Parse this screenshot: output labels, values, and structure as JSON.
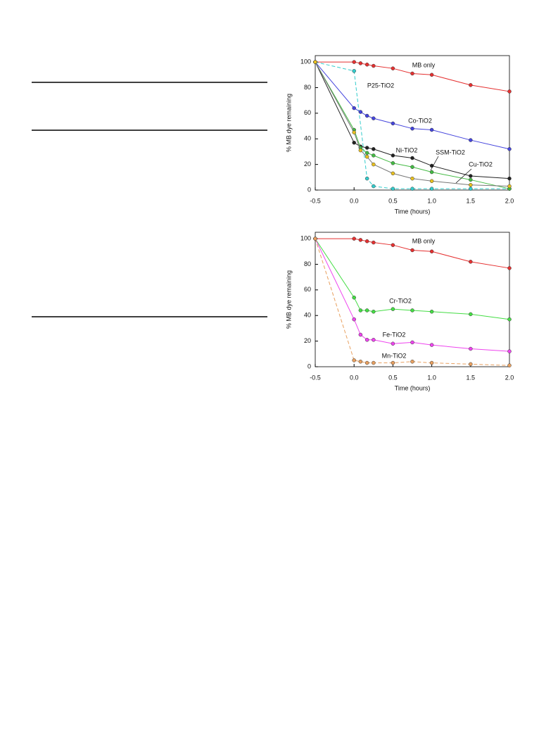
{
  "chart_data": [
    {
      "type": "line",
      "xlabel": "Time (hours)",
      "ylabel": "% MB dye remaining",
      "x": [
        -0.5,
        0,
        0.083,
        0.167,
        0.25,
        0.5,
        0.75,
        1.0,
        1.5,
        2.0
      ],
      "xlim": [
        -0.5,
        2.0
      ],
      "xticks": [
        -0.5,
        {
          "value": 0,
          "label": "0.0"
        },
        0.5,
        {
          "value": 1,
          "label": "1.0"
        },
        1.5,
        {
          "value": 2,
          "label": "2.0"
        }
      ],
      "ylim": [
        0,
        105
      ],
      "yticks": [
        0,
        20,
        40,
        60,
        80,
        100
      ],
      "series": [
        {
          "name": "MB only",
          "color": "#e53030",
          "values": [
            100,
            100,
            99,
            98,
            97,
            95,
            91,
            90,
            82,
            77
          ]
        },
        {
          "name": "P25-TiO2",
          "color": "#33cccc",
          "dashed": true,
          "x": [
            -0.5,
            0,
            0.167,
            0.25,
            0.5,
            0.75,
            1.0,
            1.5,
            2.0
          ],
          "values": [
            100,
            93,
            9,
            3,
            1,
            1,
            1,
            1,
            1
          ]
        },
        {
          "name": "Co-TiO2",
          "color": "#4444dd",
          "values": [
            100,
            64,
            61,
            58,
            56,
            52,
            48,
            47,
            39,
            32
          ]
        },
        {
          "name": "Ni-TiO2",
          "color": "#222222",
          "values": [
            100,
            37,
            34,
            33,
            32,
            27,
            25,
            19,
            11,
            9
          ]
        },
        {
          "name": "SSM-TiO2",
          "color": "#44bb44",
          "values": [
            100,
            47,
            33,
            29,
            27,
            21,
            18,
            14,
            8,
            1
          ]
        },
        {
          "name": "Cu-TiO2",
          "color": "#777777",
          "marker": "#e8c020",
          "values": [
            100,
            45,
            31,
            26,
            20,
            13,
            9,
            7,
            4,
            3
          ]
        }
      ]
    },
    {
      "type": "line",
      "xlabel": "Time (hours)",
      "ylabel": "% MB dye remaining",
      "x": [
        -0.5,
        0,
        0.083,
        0.167,
        0.25,
        0.5,
        0.75,
        1.0,
        1.5,
        2.0
      ],
      "xlim": [
        -0.5,
        2.0
      ],
      "xticks": [
        -0.5,
        {
          "value": 0,
          "label": "0.0"
        },
        0.5,
        {
          "value": 1,
          "label": "1.0"
        },
        1.5,
        {
          "value": 2,
          "label": "2.0"
        }
      ],
      "ylim": [
        0,
        105
      ],
      "yticks": [
        0,
        20,
        40,
        60,
        80,
        100
      ],
      "series": [
        {
          "name": "MB only",
          "color": "#e53030",
          "values": [
            100,
            100,
            99,
            98,
            97,
            95,
            91,
            90,
            82,
            77
          ]
        },
        {
          "name": "Cr-TiO2",
          "color": "#44dd44",
          "values": [
            100,
            54,
            44,
            44,
            43,
            45,
            44,
            43,
            41,
            37
          ]
        },
        {
          "name": "Fe-TiO2",
          "color": "#ee44ee",
          "values": [
            100,
            37,
            25,
            21,
            21,
            18,
            19,
            17,
            14,
            12
          ]
        },
        {
          "name": "Mn-TiO2",
          "color": "#e8a060",
          "dashed": true,
          "values": [
            100,
            5,
            4,
            3,
            3,
            3,
            4,
            3,
            2,
            1
          ]
        }
      ]
    }
  ]
}
